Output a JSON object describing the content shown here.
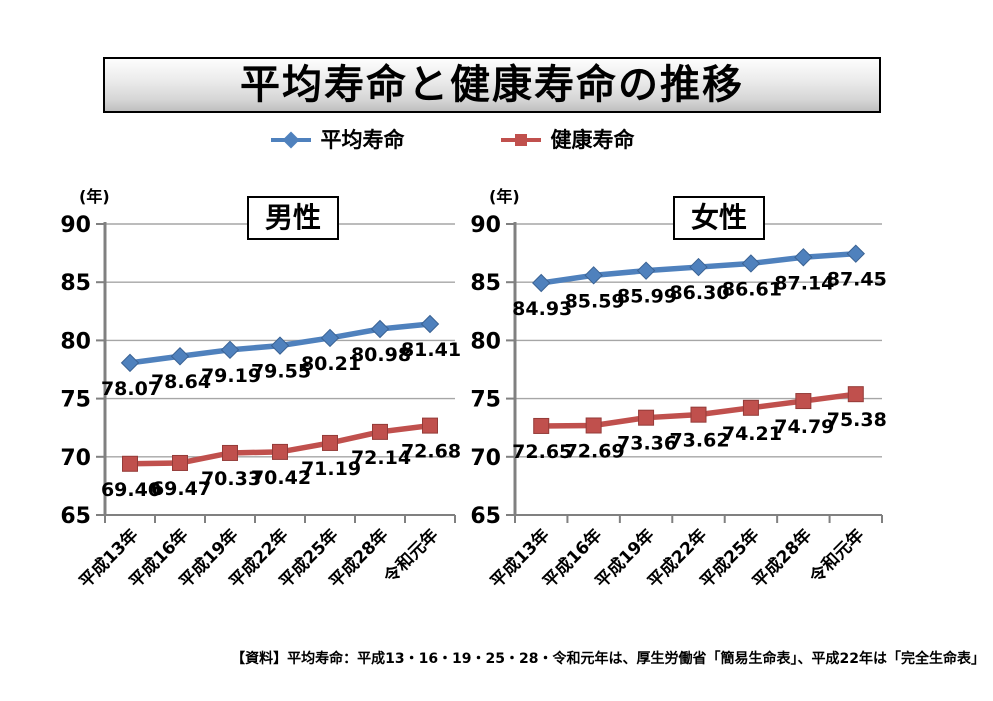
{
  "title": "平均寿命と健康寿命の推移",
  "legend": {
    "items": [
      {
        "label": "平均寿命",
        "marker": "diamond",
        "color": "#4F81BD"
      },
      {
        "label": "健康寿命",
        "marker": "square",
        "color": "#C0504D"
      }
    ]
  },
  "colors": {
    "average_series": "#4F81BD",
    "average_series_edge": "#3A6293",
    "healthy_series": "#C0504D",
    "healthy_series_edge": "#943B38",
    "gridline": "#A6A6A6",
    "axis": "#808080",
    "text": "#000000"
  },
  "source_note": "【資料】平均寿命：平成13・16・19・25・28・令和元年は、厚生労働省「簡易生命表」、平成22年は「完全生命表」",
  "chart_data": [
    {
      "type": "line",
      "title": "男性",
      "unit_label": "(年)",
      "categories": [
        "平成13年",
        "平成16年",
        "平成19年",
        "平成22年",
        "平成25年",
        "平成28年",
        "令和元年"
      ],
      "series": [
        {
          "name": "平均寿命",
          "marker": "diamond",
          "color": "#4F81BD",
          "edge": "#3A6293",
          "values": [
            78.07,
            78.64,
            79.19,
            79.55,
            80.21,
            80.98,
            81.41
          ]
        },
        {
          "name": "健康寿命",
          "marker": "square",
          "color": "#C0504D",
          "edge": "#943B38",
          "values": [
            69.4,
            69.47,
            70.33,
            70.42,
            71.19,
            72.14,
            72.68
          ]
        }
      ],
      "ylim": [
        65,
        90
      ],
      "ytick_step": 5,
      "grid": true,
      "legend_position": "top-shared",
      "data_labels": true
    },
    {
      "type": "line",
      "title": "女性",
      "unit_label": "(年)",
      "categories": [
        "平成13年",
        "平成16年",
        "平成19年",
        "平成22年",
        "平成25年",
        "平成28年",
        "令和元年"
      ],
      "series": [
        {
          "name": "平均寿命",
          "marker": "diamond",
          "color": "#4F81BD",
          "edge": "#3A6293",
          "values": [
            84.93,
            85.59,
            85.99,
            86.3,
            86.61,
            87.14,
            87.45
          ]
        },
        {
          "name": "健康寿命",
          "marker": "square",
          "color": "#C0504D",
          "edge": "#943B38",
          "values": [
            72.65,
            72.69,
            73.36,
            73.62,
            74.21,
            74.79,
            75.38
          ]
        }
      ],
      "ylim": [
        65,
        90
      ],
      "ytick_step": 5,
      "grid": true,
      "legend_position": "top-shared",
      "data_labels": true
    }
  ]
}
